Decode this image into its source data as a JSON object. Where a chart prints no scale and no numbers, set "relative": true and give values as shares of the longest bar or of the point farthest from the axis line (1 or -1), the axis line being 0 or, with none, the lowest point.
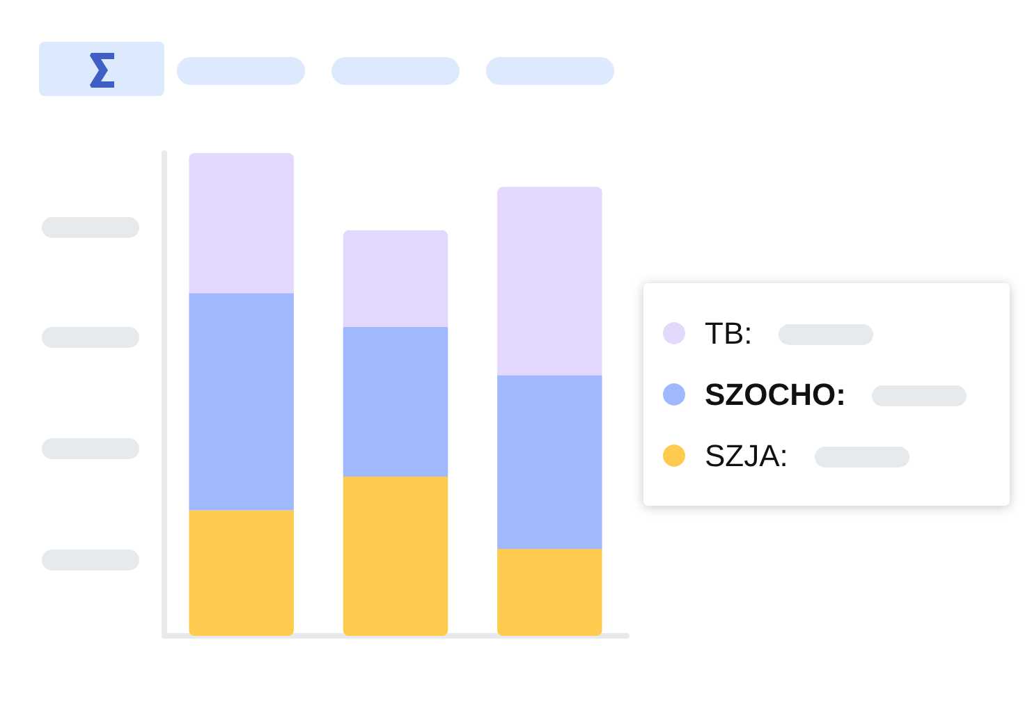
{
  "chart_data": {
    "type": "bar",
    "stacked": true,
    "relative": true,
    "categories": [
      null,
      null,
      null
    ],
    "series": [
      {
        "name": "SZJA:",
        "color": "#fecb4f",
        "values": [
          0.26,
          0.33,
          0.18
        ]
      },
      {
        "name": "SZOCHO:",
        "color": "#a0b8fd",
        "values": [
          0.45,
          0.31,
          0.36
        ]
      },
      {
        "name": "TB:",
        "color": "#e4d9fc",
        "values": [
          0.29,
          0.2,
          0.39
        ]
      }
    ],
    "legend": "right"
  }
}
